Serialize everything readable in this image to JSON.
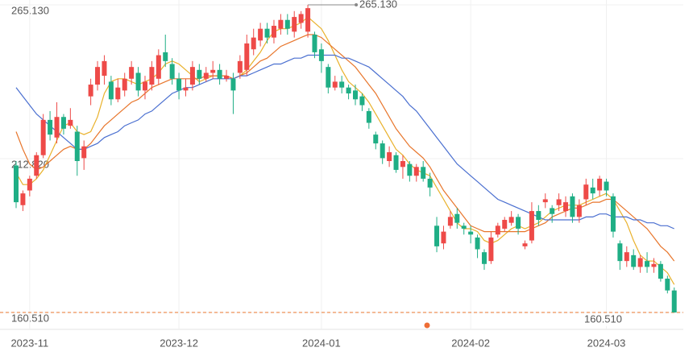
{
  "chart_data": {
    "type": "candlestick",
    "categories": [
      null,
      null,
      "2023-11",
      null,
      null,
      null,
      null,
      null,
      null,
      null,
      null,
      null,
      null,
      null,
      null,
      null,
      null,
      null,
      null,
      null,
      null,
      null,
      null,
      null,
      "2023-12",
      null,
      null,
      null,
      null,
      null,
      null,
      null,
      null,
      null,
      null,
      null,
      null,
      null,
      null,
      null,
      null,
      null,
      null,
      null,
      null,
      "2024-01",
      null,
      null,
      null,
      null,
      null,
      null,
      null,
      null,
      null,
      null,
      null,
      null,
      null,
      null,
      null,
      null,
      null,
      null,
      null,
      null,
      null,
      "2024-02",
      null,
      null,
      null,
      null,
      null,
      null,
      null,
      null,
      null,
      null,
      null,
      null,
      null,
      null,
      null,
      null,
      null,
      null,
      null,
      "2024-03",
      null,
      null,
      null,
      null,
      null,
      null,
      null,
      null,
      null,
      null
    ],
    "open": [
      210.5,
      197,
      202,
      207,
      214,
      226,
      220,
      227,
      224,
      222,
      213,
      234,
      238,
      241,
      239,
      233,
      236,
      240,
      242,
      236,
      238,
      240,
      249,
      245,
      240,
      236,
      238,
      243,
      240,
      242,
      243,
      240,
      240,
      242,
      243,
      250,
      253,
      257,
      254,
      257,
      260,
      256,
      259,
      256,
      255,
      250,
      244,
      237,
      239,
      237,
      236,
      234,
      229,
      221,
      218,
      212,
      214,
      210,
      211,
      207,
      210,
      206,
      190,
      184,
      190,
      194,
      190,
      188,
      186,
      181,
      178,
      187,
      189,
      191,
      193,
      183,
      185,
      195,
      198,
      196,
      197,
      195,
      200,
      193,
      199,
      203,
      202,
      205,
      200,
      184,
      178,
      180,
      176,
      178,
      176,
      177,
      172,
      168
    ],
    "high": [
      212,
      202,
      207,
      215,
      228,
      229,
      232,
      228,
      230,
      224,
      219,
      240,
      246,
      248,
      241,
      240,
      242,
      246,
      244,
      241,
      246,
      250,
      255,
      247,
      242,
      240,
      246,
      245,
      244,
      246,
      245,
      243,
      242,
      248,
      255,
      257,
      259,
      259,
      260,
      262,
      262,
      263,
      263,
      265.13,
      256,
      252,
      245,
      241,
      241,
      238,
      238,
      235,
      230,
      222,
      219,
      217,
      215,
      214,
      212,
      211,
      212,
      208,
      193,
      190,
      195,
      196,
      191,
      190,
      187,
      182,
      188,
      191,
      193,
      195,
      194,
      185,
      198,
      197,
      201,
      197,
      201,
      200,
      201,
      199,
      206,
      206,
      207,
      206,
      201,
      185,
      183,
      182,
      180,
      181,
      179,
      178,
      173,
      169
    ],
    "low": [
      196,
      195,
      200,
      206,
      213,
      219,
      218,
      221,
      223,
      207,
      209,
      231,
      236,
      238,
      231,
      232,
      234,
      238,
      234,
      233,
      236,
      238,
      244,
      238,
      233,
      234,
      236,
      238,
      239,
      240,
      238,
      239,
      228,
      240,
      241,
      248,
      251,
      252,
      252,
      255,
      255,
      254,
      257,
      254,
      247,
      242,
      235,
      236,
      235,
      233,
      231,
      229,
      223,
      216,
      211,
      210,
      208,
      206,
      205,
      205,
      205,
      200,
      181,
      182,
      189,
      189,
      187,
      184,
      179,
      175,
      177,
      186,
      188,
      190,
      187,
      182,
      184,
      190,
      196,
      191,
      195,
      193,
      191,
      191,
      197,
      199,
      200,
      200,
      186,
      175,
      176,
      175,
      174,
      174,
      174,
      171,
      167,
      160.51
    ],
    "close": [
      198,
      201,
      206,
      214,
      226,
      221,
      227,
      223,
      226,
      212,
      217,
      238,
      244,
      246,
      233,
      237,
      240,
      244,
      236,
      239,
      244,
      248,
      246,
      240,
      236,
      237,
      244,
      240,
      242,
      243,
      240,
      241,
      236,
      246,
      252,
      254,
      257,
      254,
      258,
      260,
      257,
      261,
      262,
      264,
      249,
      246,
      237,
      239,
      237,
      235,
      233,
      231,
      225,
      218,
      213,
      215,
      209,
      212,
      207,
      210,
      206,
      203,
      183,
      188,
      193,
      191,
      189,
      187,
      182,
      177,
      186,
      190,
      192,
      193,
      189,
      184,
      195,
      192,
      199,
      194,
      199,
      198,
      193,
      197,
      204,
      201,
      206,
      202,
      188,
      178,
      181,
      176,
      179,
      176,
      177,
      172,
      168,
      160.51
    ],
    "up_color": "#ee4a48",
    "down_color": "#1fae85",
    "series": [
      {
        "color": "#e9b12b",
        "values": [
          208,
          204,
          204,
          206,
          209,
          214,
          219,
          224,
          225,
          222,
          221,
          222,
          227,
          235,
          239,
          240,
          240,
          239,
          238,
          239,
          240,
          242,
          245,
          246,
          245,
          243,
          241,
          239,
          240,
          241,
          241,
          241,
          240,
          241,
          243,
          246,
          249,
          253,
          256,
          257,
          257,
          258,
          259,
          261,
          259,
          257,
          253,
          248,
          243,
          239,
          237,
          235,
          232,
          228,
          224,
          220,
          216,
          214,
          211,
          209,
          208,
          207,
          203,
          199,
          195,
          191,
          189,
          189,
          188,
          185,
          184,
          185,
          187,
          189,
          190,
          189,
          190,
          191,
          193,
          195,
          196,
          197,
          197,
          197,
          198,
          199,
          200,
          201,
          199,
          195,
          191,
          185,
          180,
          178,
          178,
          176,
          174,
          170
        ]
      },
      {
        "color": "#e8762c",
        "values": [
          222,
          216,
          211,
          209,
          210,
          212,
          214,
          216,
          217,
          216,
          216,
          218,
          221,
          224,
          226,
          228,
          230,
          232,
          233,
          235,
          237,
          238,
          239,
          240,
          240,
          240,
          240,
          240,
          241,
          241,
          241,
          241,
          240,
          241,
          242,
          244,
          246,
          247,
          249,
          251,
          252,
          253,
          254,
          255,
          255,
          254,
          252,
          250,
          248,
          246,
          244,
          241,
          238,
          235,
          231,
          227,
          223,
          220,
          217,
          215,
          213,
          210,
          206,
          202,
          199,
          196,
          193,
          190,
          189,
          188,
          188,
          188,
          188,
          188,
          188,
          188,
          189,
          190,
          191,
          193,
          194,
          195,
          196,
          196,
          197,
          198,
          198,
          199,
          199,
          197,
          195,
          193,
          191,
          189,
          186,
          183,
          181,
          178
        ]
      },
      {
        "color": "#4a6fd0",
        "values": [
          237,
          234,
          231,
          228,
          226,
          224,
          222,
          220,
          218,
          216,
          216,
          217,
          218,
          220,
          221,
          222,
          224,
          225,
          226,
          228,
          229,
          231,
          233,
          235,
          236,
          237,
          237,
          238,
          239,
          240,
          240,
          240,
          240,
          241,
          241,
          242,
          243,
          244,
          245,
          245,
          246,
          247,
          247,
          248,
          248,
          248,
          248,
          248,
          247,
          247,
          246,
          245,
          244,
          242,
          240,
          238,
          236,
          234,
          231,
          229,
          226,
          223,
          220,
          217,
          214,
          211,
          209,
          207,
          205,
          203,
          201,
          199,
          198,
          197,
          196,
          195,
          194,
          193,
          192,
          192,
          192,
          192,
          192,
          192,
          193,
          193,
          194,
          194,
          193,
          193,
          193,
          192,
          192,
          191,
          191,
          190,
          190,
          189
        ]
      }
    ],
    "ylim": [
      160.51,
      265.13
    ],
    "yticks": [
      {
        "value": 265.13,
        "label": "265.130"
      },
      {
        "value": 212.82,
        "label": "212.820"
      },
      {
        "value": 160.51,
        "label": "160.510"
      }
    ],
    "grid": true,
    "max_marker": {
      "value": 265.13,
      "label": "265.130"
    },
    "last_price": {
      "value": 160.51,
      "label": "160.510",
      "color": "#e8762c"
    }
  }
}
